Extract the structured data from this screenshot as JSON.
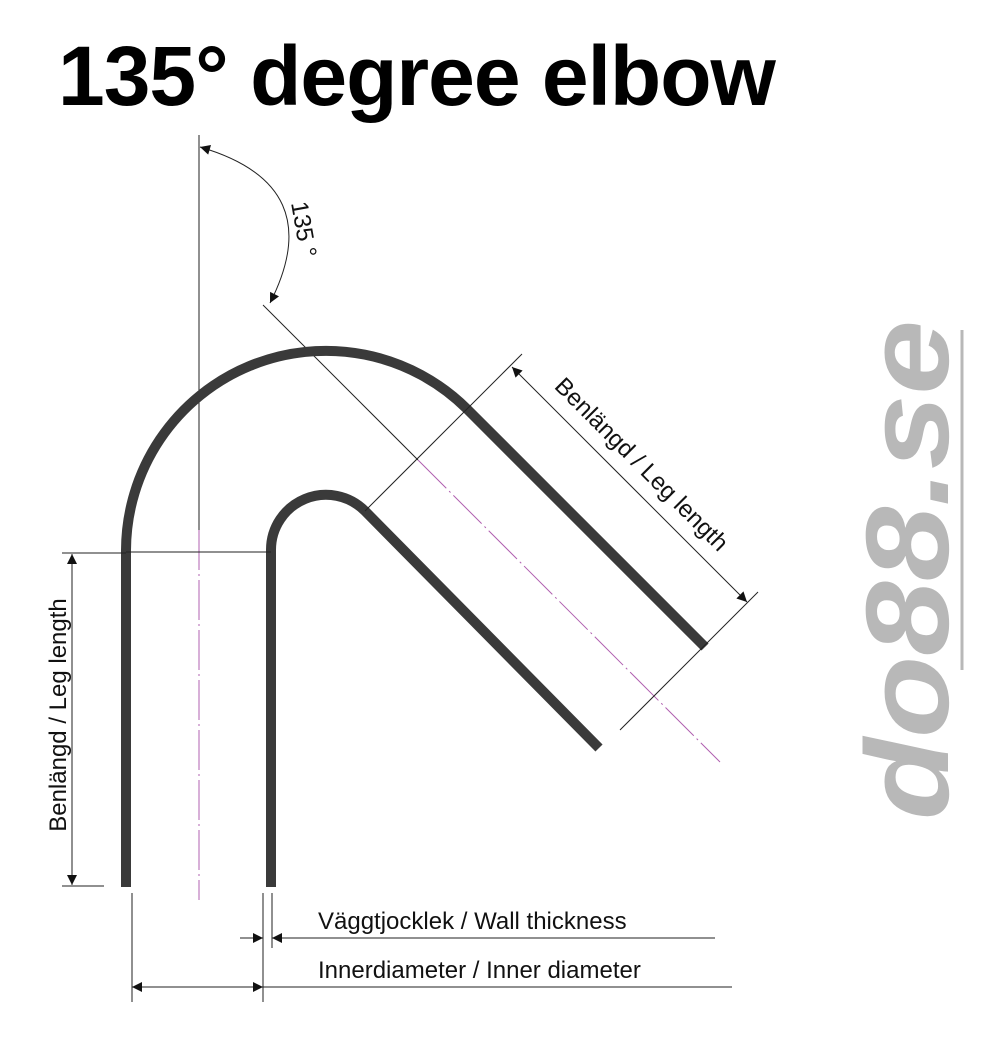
{
  "title": "135° degree elbow",
  "angle_label": "135 °",
  "leg_length_label_left": "Benlängd / Leg length",
  "leg_length_label_right": "Benlängd / Leg length",
  "wall_thickness_label": "Väggtjocklek / Wall thickness",
  "inner_diameter_label": "Innerdiameter / Inner diameter",
  "logo": "do88.se",
  "colors": {
    "pipe": "#3a3a3a",
    "centerline": "#b060b0",
    "logo": "#b8b8b8"
  }
}
